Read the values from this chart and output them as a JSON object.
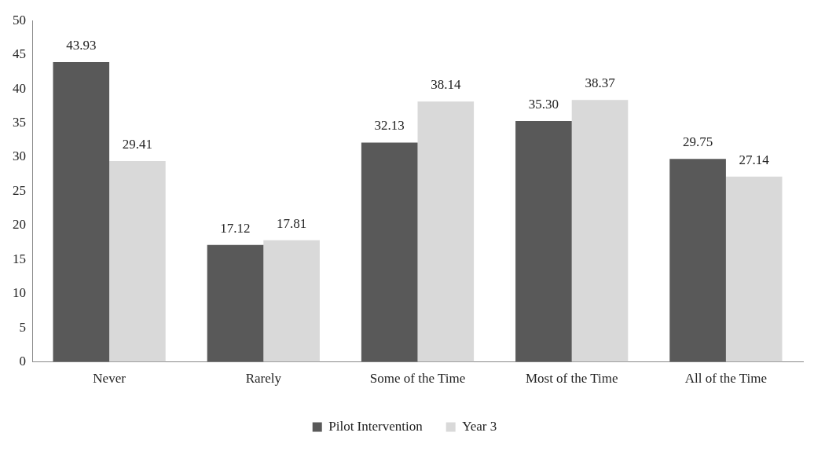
{
  "chart_data": {
    "type": "bar",
    "categories": [
      "Never",
      "Rarely",
      "Some of the Time",
      "Most of the Time",
      "All of the Time"
    ],
    "series": [
      {
        "name": "Pilot Intervention",
        "color": "#595959",
        "values": [
          43.93,
          17.12,
          32.13,
          35.3,
          29.75
        ],
        "value_labels": [
          "43.93",
          "17.12",
          "32.13",
          "35.30",
          "29.75"
        ]
      },
      {
        "name": "Year 3",
        "color": "#d9d9d9",
        "values": [
          29.41,
          17.81,
          38.14,
          38.37,
          27.14
        ],
        "value_labels": [
          "29.41",
          "17.81",
          "38.14",
          "38.37",
          "27.14"
        ]
      }
    ],
    "ylim": [
      0,
      50
    ],
    "yticks": [
      0,
      5,
      10,
      15,
      20,
      25,
      30,
      35,
      40,
      45,
      50
    ],
    "grid": false,
    "legend": "bottom"
  }
}
